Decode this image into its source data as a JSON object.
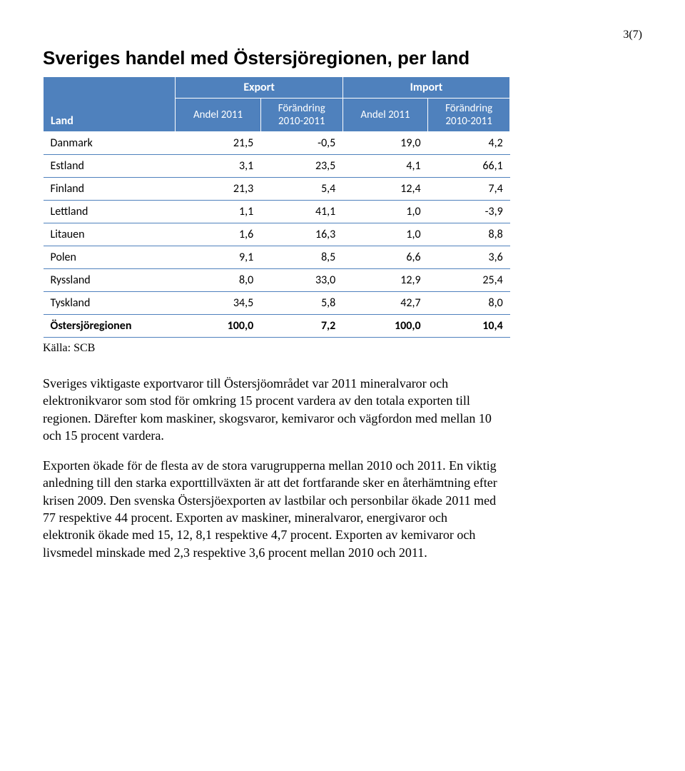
{
  "page_number": "3(7)",
  "title": "Sveriges handel med Östersjöregionen, per land",
  "table": {
    "header": {
      "land": "Land",
      "export": "Export",
      "import": "Import",
      "andel": "Andel 2011",
      "forandring_line1": "Förändring",
      "forandring_line2": "2010-2011"
    },
    "rows": [
      {
        "land": "Danmark",
        "c1": "21,5",
        "c2": "-0,5",
        "c3": "19,0",
        "c4": "4,2"
      },
      {
        "land": "Estland",
        "c1": "3,1",
        "c2": "23,5",
        "c3": "4,1",
        "c4": "66,1"
      },
      {
        "land": "Finland",
        "c1": "21,3",
        "c2": "5,4",
        "c3": "12,4",
        "c4": "7,4"
      },
      {
        "land": "Lettland",
        "c1": "1,1",
        "c2": "41,1",
        "c3": "1,0",
        "c4": "-3,9"
      },
      {
        "land": "Litauen",
        "c1": "1,6",
        "c2": "16,3",
        "c3": "1,0",
        "c4": "8,8"
      },
      {
        "land": "Polen",
        "c1": "9,1",
        "c2": "8,5",
        "c3": "6,6",
        "c4": "3,6"
      },
      {
        "land": "Ryssland",
        "c1": "8,0",
        "c2": "33,0",
        "c3": "12,9",
        "c4": "25,4"
      },
      {
        "land": "Tyskland",
        "c1": "34,5",
        "c2": "5,8",
        "c3": "42,7",
        "c4": "8,0"
      },
      {
        "land": "Östersjöregionen",
        "c1": "100,0",
        "c2": "7,2",
        "c3": "100,0",
        "c4": "10,4"
      }
    ]
  },
  "source": "Källa: SCB",
  "paragraphs": {
    "p1": "Sveriges viktigaste exportvaror till Östersjöområdet var 2011 mineralvaror och elektronikvaror som stod för omkring 15 procent vardera av den totala exporten till regionen. Därefter kom maskiner, skogsvaror, kemivaror och vägfordon med mellan 10 och 15 procent vardera.",
    "p2": "Exporten ökade för de flesta av de stora varugrupperna mellan 2010 och 2011. En viktig anledning till den starka exporttillväxten är att det fortfarande sker en återhämtning efter krisen 2009. Den svenska Östersjöexporten av lastbilar och personbilar ökade 2011 med 77 respektive 44 procent. Exporten av maskiner, mineralvaror, energivaror och elektronik ökade med 15, 12, 8,1 respektive 4,7 procent. Exporten av kemivaror och livsmedel minskade med 2,3 respektive 3,6 procent mellan 2010 och 2011."
  },
  "style": {
    "header_bg": "#4f81bd",
    "header_text": "#ffffff",
    "row_border": "#4f81bd",
    "body_bg": "#ffffff",
    "text_color": "#000000"
  }
}
